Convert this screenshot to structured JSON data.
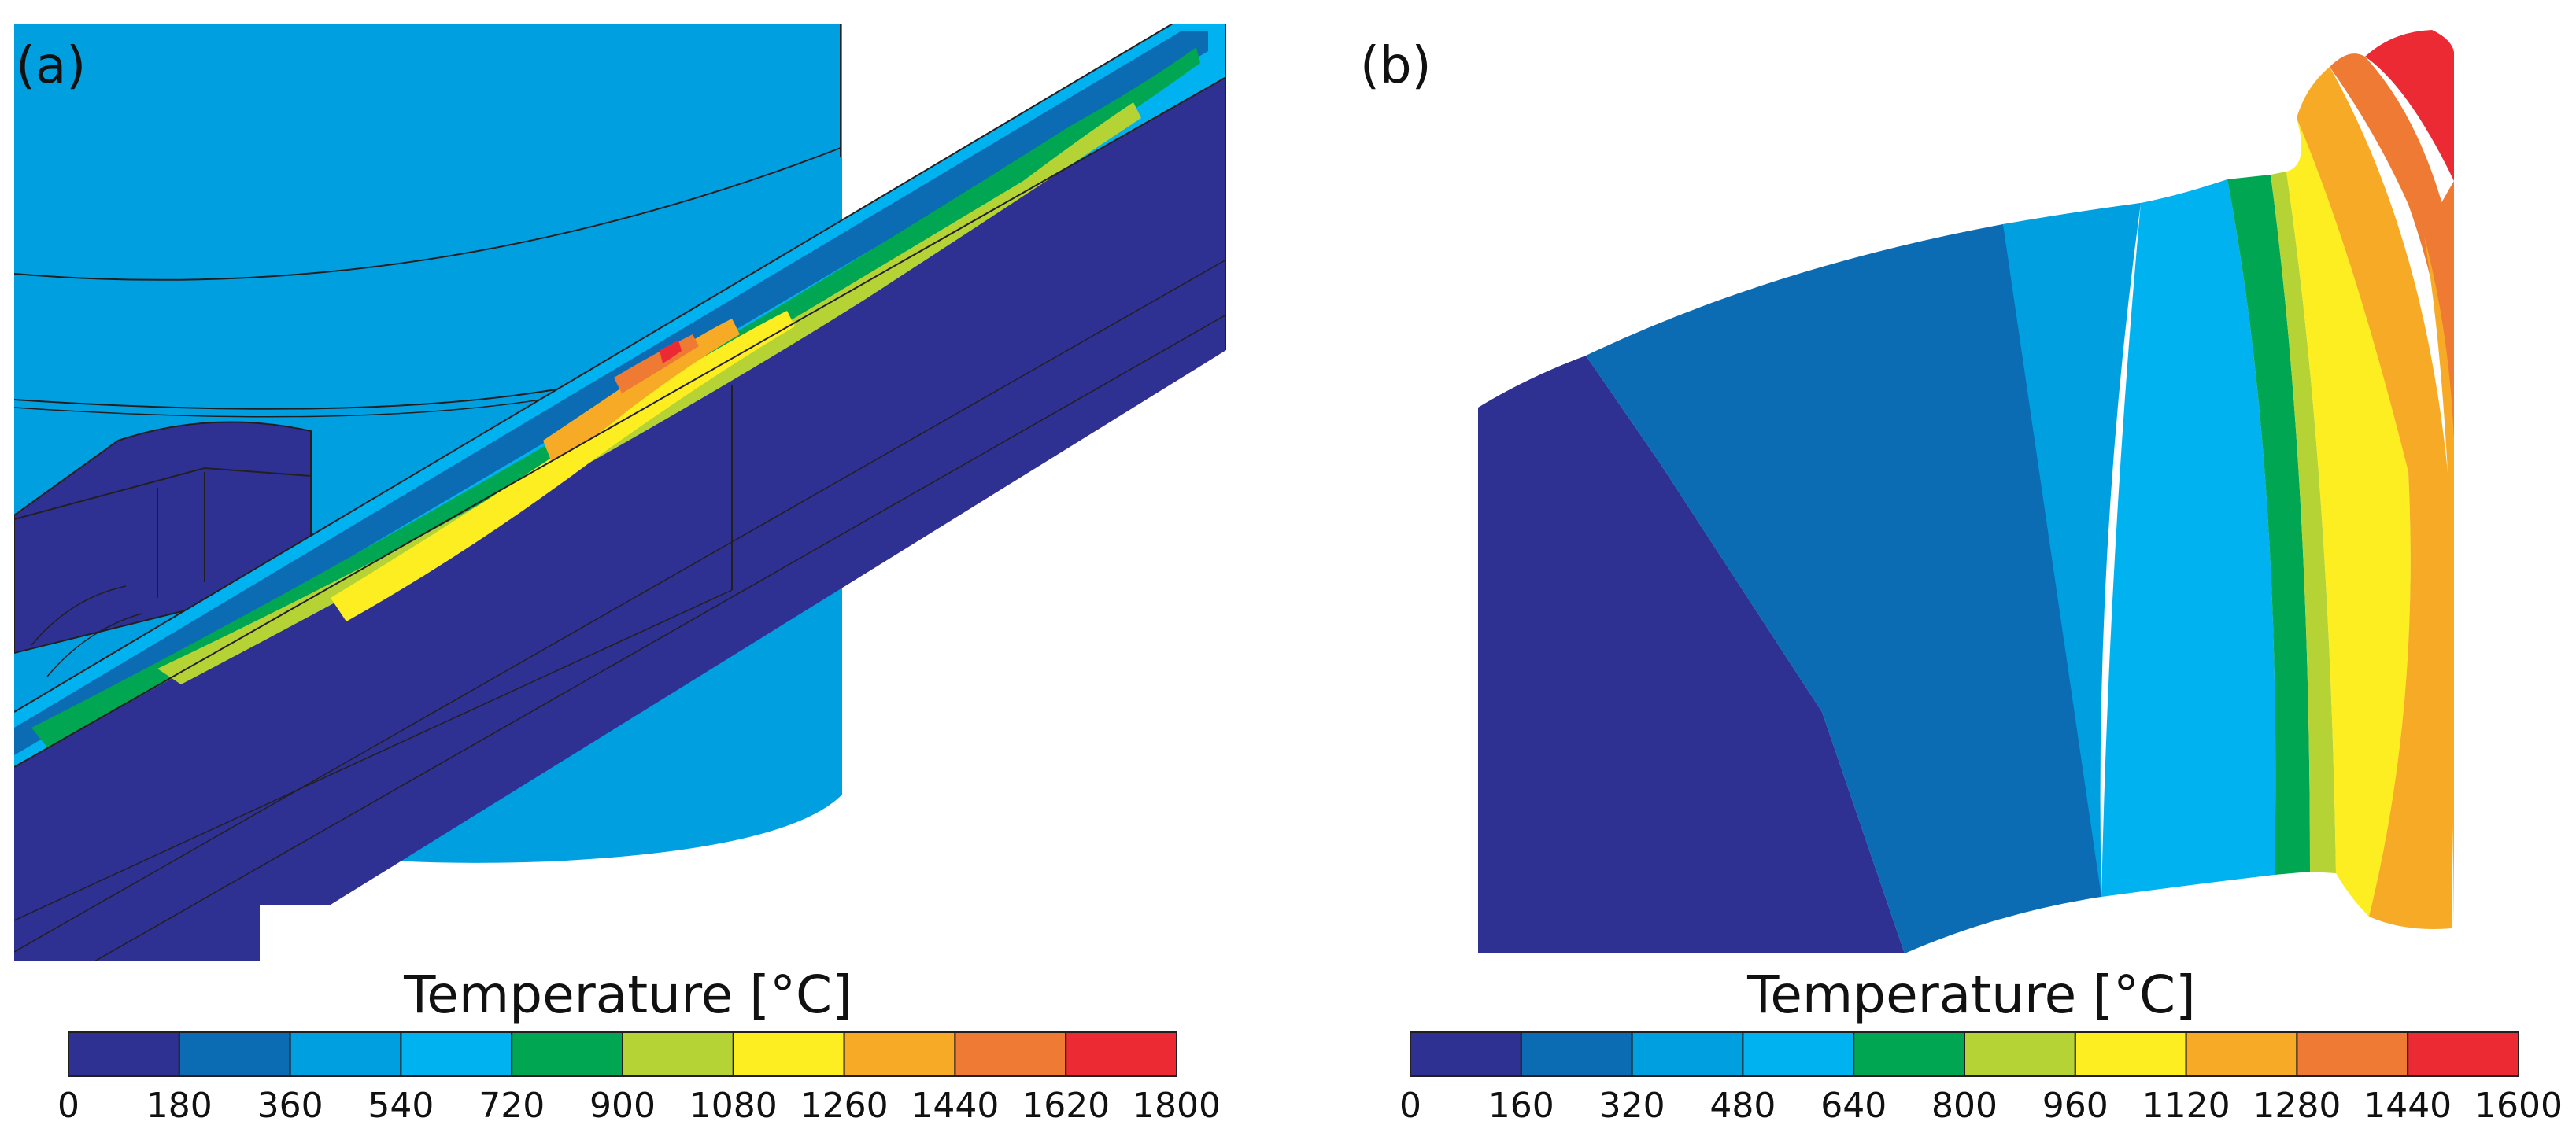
{
  "panels": [
    {
      "id": "a",
      "label": "(a)",
      "colorbar": {
        "title": "Temperature [°C]",
        "ticks": [
          "0",
          "180",
          "360",
          "540",
          "720",
          "900",
          "1080",
          "1260",
          "1440",
          "1620",
          "1800"
        ]
      }
    },
    {
      "id": "b",
      "label": "(b)",
      "colorbar": {
        "title": "Temperature [°C]",
        "ticks": [
          "0",
          "160",
          "320",
          "480",
          "640",
          "800",
          "960",
          "1120",
          "1280",
          "1440",
          "1600"
        ]
      }
    }
  ],
  "palette": [
    "#2e3192",
    "#0b6cb4",
    "#00a0e0",
    "#00b2ef",
    "#00a651",
    "#b5d334",
    "#fcee21",
    "#f7aa26",
    "#ef7a33",
    "#ec2a33"
  ],
  "outline_color": "#231f20"
}
